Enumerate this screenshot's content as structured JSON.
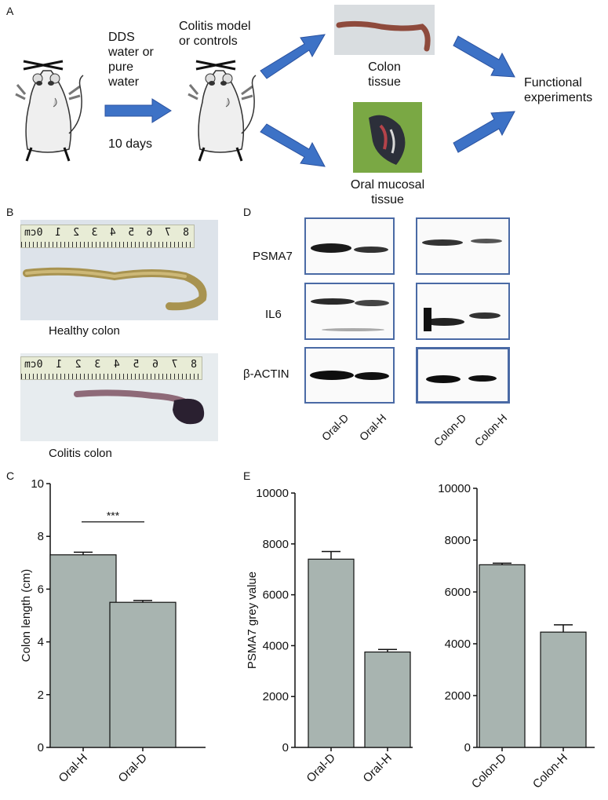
{
  "panels": {
    "a": "A",
    "b": "B",
    "c": "C",
    "d": "D",
    "e": "E"
  },
  "schema": {
    "step1": [
      "DDS",
      "water or",
      "pure",
      "water"
    ],
    "duration": "10 days",
    "step2": [
      "Colitis model",
      "or controls"
    ],
    "colon_tissue": [
      "Colon",
      "tissue"
    ],
    "oral_tissue": [
      "Oral mucosal",
      "tissue"
    ],
    "functional": [
      "Functional",
      "experiments"
    ],
    "arrow_color": "#3d72c6"
  },
  "photos": {
    "healthy_caption": "Healthy colon",
    "colitis_caption": "Colitis colon",
    "ruler_numbers": [
      "8",
      "7",
      "6",
      "5",
      "4",
      "3",
      "2",
      "1",
      "0cm"
    ]
  },
  "blots": {
    "rows": [
      "PSMA7",
      "IL6",
      "β-ACTIN"
    ],
    "left_lanes": [
      "Oral-D",
      "Oral-H"
    ],
    "right_lanes": [
      "Colon-D",
      "Colon-H"
    ],
    "border_color": "#4a6aa5"
  },
  "chart_data": [
    {
      "type": "bar",
      "panel": "C",
      "categories": [
        "Oral-H",
        "Oral-D"
      ],
      "values": [
        7.3,
        5.5
      ],
      "errors": [
        0.1,
        0.07
      ],
      "ylabel": "Colon length (cm)",
      "ylim": [
        0,
        10
      ],
      "yticks": [
        0,
        2,
        4,
        6,
        8,
        10
      ],
      "significance": "***",
      "bar_color": "#a8b4b0"
    },
    {
      "type": "bar",
      "panel": "E-left",
      "categories": [
        "Oral-D",
        "Oral-H"
      ],
      "values": [
        7400,
        3750
      ],
      "errors": [
        300,
        100
      ],
      "ylabel": "PSMA7 grey value",
      "ylim": [
        0,
        10000
      ],
      "yticks": [
        0,
        2000,
        4000,
        6000,
        8000,
        10000
      ],
      "bar_color": "#a8b4b0"
    },
    {
      "type": "bar",
      "panel": "E-right",
      "categories": [
        "Colon-D",
        "Colon-H"
      ],
      "values": [
        7050,
        4450
      ],
      "errors": [
        60,
        280
      ],
      "ylabel": "",
      "ylim": [
        0,
        10000
      ],
      "yticks": [
        0,
        2000,
        4000,
        6000,
        8000,
        10000
      ],
      "bar_color": "#a8b4b0"
    }
  ]
}
